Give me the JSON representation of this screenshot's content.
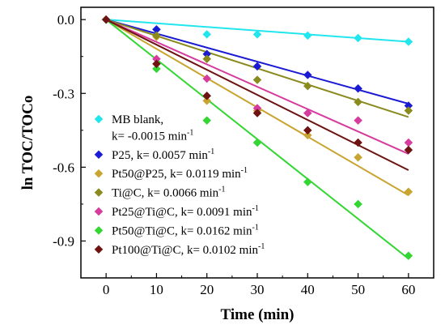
{
  "chart_data": {
    "type": "scatter",
    "xlabel": "Time (min)",
    "ylabel": "ln TOC/TOCo",
    "xlim": [
      -5,
      65
    ],
    "ylim": [
      -1.05,
      0.05
    ],
    "x_ticks": [
      0,
      10,
      20,
      30,
      40,
      50,
      60
    ],
    "x_tick_labels": [
      "0",
      "10",
      "20",
      "30",
      "40",
      "50",
      "60"
    ],
    "y_ticks": [
      0.0,
      -0.3,
      -0.6,
      -0.9
    ],
    "y_tick_labels": [
      "0.0",
      "-0.3",
      "-0.6",
      "-0.9"
    ],
    "grid": false,
    "legend_position": "left-inside",
    "series": [
      {
        "name": "MB blank,",
        "name_line2": "k= -0.0015 min",
        "sup": "-1",
        "color": "#22e6ee",
        "x": [
          0,
          10,
          20,
          30,
          40,
          50,
          60
        ],
        "y": [
          0.0,
          -0.04,
          -0.06,
          -0.06,
          -0.065,
          -0.075,
          -0.09
        ],
        "fit_slope": -0.0015
      },
      {
        "name": "P25, k= 0.0057 min",
        "sup": "-1",
        "color": "#1a1ad4",
        "x": [
          0,
          10,
          20,
          30,
          40,
          50,
          60
        ],
        "y": [
          0.0,
          -0.04,
          -0.14,
          -0.19,
          -0.225,
          -0.28,
          -0.35
        ],
        "fit_slope": -0.0057
      },
      {
        "name": "Pt50@P25, k= 0.0119 min",
        "sup": "-1",
        "color": "#c8a430",
        "x": [
          0,
          10,
          20,
          30,
          40,
          50,
          60
        ],
        "y": [
          0.0,
          -0.07,
          -0.33,
          -0.37,
          -0.47,
          -0.56,
          -0.7
        ],
        "fit_slope": -0.0119
      },
      {
        "name": "Ti@C, k= 0.0066 min",
        "sup": "-1",
        "color": "#8a8a1e",
        "x": [
          0,
          10,
          20,
          30,
          40,
          50,
          60
        ],
        "y": [
          0.0,
          -0.065,
          -0.16,
          -0.245,
          -0.27,
          -0.335,
          -0.37
        ],
        "fit_slope": -0.0066
      },
      {
        "name": "Pt25@Ti@C, k= 0.0091 min",
        "sup": "-1",
        "color": "#d63c9e",
        "x": [
          0,
          10,
          20,
          30,
          40,
          50,
          60
        ],
        "y": [
          0.0,
          -0.16,
          -0.24,
          -0.36,
          -0.38,
          -0.41,
          -0.5
        ],
        "fit_slope": -0.0091
      },
      {
        "name": "Pt50@Ti@C, k= 0.0162 min",
        "sup": "-1",
        "color": "#33d633",
        "x": [
          0,
          10,
          20,
          30,
          40,
          50,
          60
        ],
        "y": [
          0.0,
          -0.2,
          -0.41,
          -0.5,
          -0.66,
          -0.75,
          -0.96
        ],
        "fit_slope": -0.0162
      },
      {
        "name": "Pt100@Ti@C, k= 0.0102 min",
        "sup": "-1",
        "color": "#6e1212",
        "x": [
          0,
          10,
          20,
          30,
          40,
          50,
          60
        ],
        "y": [
          0.0,
          -0.18,
          -0.31,
          -0.38,
          -0.45,
          -0.5,
          -0.53
        ],
        "fit_slope": -0.0102
      }
    ]
  }
}
